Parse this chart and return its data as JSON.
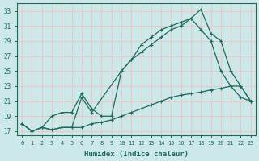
{
  "title": "",
  "xlabel": "Humidex (Indice chaleur)",
  "ylabel": "",
  "bg_color": "#cce8e8",
  "grid_color": "#e8c8c8",
  "line_color": "#1a6b5a",
  "xlim": [
    -0.5,
    23.5
  ],
  "ylim": [
    16.5,
    34.0
  ],
  "xticks": [
    0,
    1,
    2,
    3,
    4,
    5,
    6,
    7,
    8,
    9,
    10,
    11,
    12,
    13,
    14,
    15,
    16,
    17,
    18,
    19,
    20,
    21,
    22,
    23
  ],
  "yticks": [
    17,
    19,
    21,
    23,
    25,
    27,
    29,
    31,
    33
  ],
  "line1_x": [
    0,
    1,
    2,
    3,
    4,
    5,
    6,
    7,
    8,
    9,
    10,
    11,
    12,
    13,
    14,
    15,
    16,
    17,
    18,
    19,
    20,
    21,
    22,
    23
  ],
  "line1_y": [
    18.0,
    17.0,
    17.5,
    17.2,
    17.5,
    17.5,
    17.5,
    18.0,
    18.2,
    18.5,
    19.0,
    19.5,
    20.0,
    20.5,
    21.0,
    21.5,
    21.8,
    22.0,
    22.2,
    22.5,
    22.7,
    23.0,
    23.0,
    21.0
  ],
  "line2_x": [
    0,
    1,
    2,
    3,
    4,
    5,
    6,
    7,
    10,
    11,
    12,
    13,
    14,
    15,
    16,
    17,
    18,
    19,
    20,
    21,
    22,
    23
  ],
  "line2_y": [
    18.0,
    17.0,
    17.5,
    17.2,
    17.5,
    17.5,
    21.5,
    19.5,
    25.0,
    26.5,
    27.5,
    28.5,
    29.5,
    30.5,
    31.0,
    32.0,
    33.2,
    30.0,
    29.0,
    25.0,
    23.0,
    21.0
  ],
  "line3_x": [
    0,
    1,
    2,
    3,
    4,
    5,
    6,
    7,
    8,
    9,
    10,
    11,
    12,
    13,
    14,
    15,
    16,
    17,
    18,
    19,
    20,
    21,
    22,
    23
  ],
  "line3_y": [
    18.0,
    17.0,
    17.5,
    19.0,
    19.5,
    19.5,
    22.0,
    20.0,
    19.0,
    19.0,
    25.0,
    26.5,
    28.5,
    29.5,
    30.5,
    31.0,
    31.5,
    32.0,
    30.5,
    29.0,
    25.0,
    23.0,
    21.5,
    21.0
  ]
}
